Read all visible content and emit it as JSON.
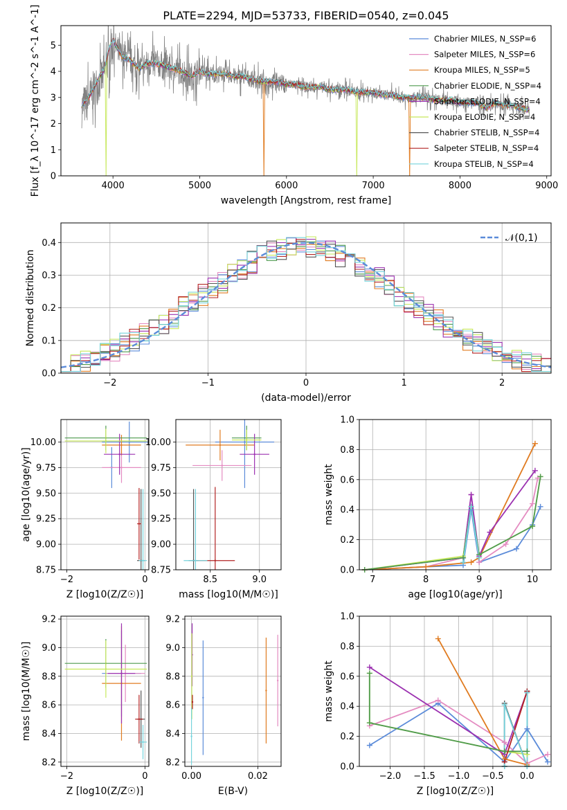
{
  "chart_data": [
    {
      "id": "spectrum",
      "type": "line",
      "title": "PLATE=2294, MJD=53733, FIBERID=0540, z=0.045",
      "xlabel": "wavelength [Angstrom, rest frame]",
      "ylabel": "Flux [f_λ 10^-17 erg cm^-2 s^-1 A^-1]",
      "xlim": [
        3400,
        9050
      ],
      "ylim": [
        0,
        5.75
      ],
      "xticks": [
        4000,
        5000,
        6000,
        7000,
        8000,
        9000
      ],
      "yticks": [
        0,
        1,
        2,
        3,
        4,
        5
      ],
      "grid": false,
      "legend_position": "top-right",
      "observed": {
        "color": "#808080",
        "x": [
          3640,
          3700,
          3800,
          3900,
          3950,
          4000,
          4100,
          4200,
          4300,
          4400,
          4500,
          4600,
          4700,
          4800,
          4900,
          5000,
          5100,
          5200,
          5300,
          5400,
          5500,
          5600,
          5700,
          5800,
          5900,
          6000,
          6100,
          6200,
          6300,
          6400,
          6500,
          6600,
          6700,
          6800,
          6900,
          7000,
          7100,
          7200,
          7300,
          7400,
          7500,
          7600,
          7700,
          7800,
          7900,
          8000,
          8100,
          8200,
          8300,
          8400,
          8500,
          8600,
          8700,
          8800
        ],
        "y": [
          2.6,
          2.8,
          3.4,
          3.9,
          4.6,
          5.1,
          4.6,
          4.4,
          4.1,
          4.3,
          4.3,
          4.2,
          4.1,
          4.0,
          3.8,
          4.0,
          3.9,
          3.9,
          3.9,
          3.8,
          3.8,
          3.7,
          3.6,
          3.6,
          3.6,
          3.5,
          3.5,
          3.4,
          3.4,
          3.4,
          3.3,
          3.3,
          3.3,
          3.2,
          3.2,
          3.2,
          3.1,
          3.1,
          3.0,
          3.0,
          3.0,
          3.0,
          2.9,
          2.9,
          2.9,
          2.8,
          2.8,
          2.8,
          2.6,
          2.8,
          2.7,
          2.7,
          2.6,
          2.5
        ]
      },
      "model_x": [
        3640,
        3700,
        3800,
        3900,
        3950,
        4000,
        4100,
        4200,
        4300,
        4400,
        4500,
        4600,
        4700,
        4800,
        4900,
        5000,
        5100,
        5200,
        5300,
        5400,
        5500,
        5600,
        5700,
        5800,
        5900,
        6000,
        6100,
        6200,
        6300,
        6400,
        6500,
        6600,
        6700,
        6800,
        6900,
        7000,
        7100,
        7200,
        7300,
        7400,
        7500,
        7600,
        7700,
        7800,
        7900,
        8000,
        8100,
        8200,
        8300,
        8400,
        8500,
        8600,
        8700,
        8800
      ],
      "model_y": [
        2.7,
        2.9,
        3.5,
        4.1,
        4.8,
        5.2,
        4.6,
        4.4,
        4.1,
        4.3,
        4.3,
        4.2,
        4.1,
        4.0,
        3.8,
        4.0,
        3.9,
        3.9,
        3.9,
        3.8,
        3.8,
        3.7,
        3.6,
        3.6,
        3.6,
        3.5,
        3.5,
        3.4,
        3.4,
        3.4,
        3.3,
        3.3,
        3.3,
        3.2,
        3.2,
        3.2,
        3.1,
        3.1,
        3.0,
        3.0,
        3.0,
        3.0,
        2.9,
        2.9,
        2.9,
        2.8,
        2.8,
        2.8,
        2.6,
        2.8,
        2.7,
        2.7,
        2.6,
        2.5
      ],
      "series": [
        {
          "name": "Chabrier MILES, N_SSP=6",
          "color": "#5b8bd9"
        },
        {
          "name": "Salpeter MILES, N_SSP=6",
          "color": "#e48bc1"
        },
        {
          "name": "Kroupa MILES, N_SSP=5",
          "color": "#e07b20",
          "drops": [
            5740,
            7420
          ]
        },
        {
          "name": "Chabrier ELODIE, N_SSP=4",
          "color": "#4e9a4e"
        },
        {
          "name": "Salpeter ELODIE, N_SSP=4",
          "color": "#9b30b0"
        },
        {
          "name": "Kroupa ELODIE, N_SSP=4",
          "color": "#c6e85a",
          "drops": [
            3920,
            6810
          ]
        },
        {
          "name": "Chabrier STELIB, N_SSP=4",
          "color": "#555555"
        },
        {
          "name": "Salpeter STELIB, N_SSP=4",
          "color": "#b22222"
        },
        {
          "name": "Kroupa STELIB, N_SSP=4",
          "color": "#74d3dc"
        }
      ]
    },
    {
      "id": "residuals",
      "type": "line",
      "xlabel": "(data-model)/error",
      "ylabel": "Normed distribution",
      "xlim": [
        -2.5,
        2.5
      ],
      "ylim": [
        0,
        0.46
      ],
      "xticks": [
        -2,
        -1,
        0,
        1,
        2
      ],
      "yticks": [
        0.0,
        0.1,
        0.2,
        0.3,
        0.4
      ],
      "grid": true,
      "legend_position": "top-right",
      "reference": {
        "name": "𝒩(0,1)",
        "color": "#5b8bd9"
      },
      "bin_edges": [
        -2.5,
        -2.4,
        -2.3,
        -2.2,
        -2.1,
        -2.0,
        -1.9,
        -1.8,
        -1.7,
        -1.6,
        -1.5,
        -1.4,
        -1.3,
        -1.2,
        -1.1,
        -1.0,
        -0.9,
        -0.8,
        -0.7,
        -0.6,
        -0.5,
        -0.4,
        -0.3,
        -0.2,
        -0.1,
        0.0,
        0.1,
        0.2,
        0.3,
        0.4,
        0.5,
        0.6,
        0.7,
        0.8,
        0.9,
        1.0,
        1.1,
        1.2,
        1.3,
        1.4,
        1.5,
        1.6,
        1.7,
        1.8,
        1.9,
        2.0,
        2.1,
        2.2,
        2.3,
        2.4,
        2.5
      ],
      "base_values": [
        0.02,
        0.03,
        0.04,
        0.05,
        0.06,
        0.07,
        0.09,
        0.1,
        0.12,
        0.13,
        0.15,
        0.17,
        0.2,
        0.22,
        0.24,
        0.26,
        0.28,
        0.3,
        0.32,
        0.34,
        0.36,
        0.37,
        0.38,
        0.39,
        0.39,
        0.39,
        0.38,
        0.37,
        0.36,
        0.34,
        0.33,
        0.31,
        0.29,
        0.27,
        0.24,
        0.22,
        0.2,
        0.18,
        0.16,
        0.14,
        0.12,
        0.1,
        0.09,
        0.07,
        0.06,
        0.05,
        0.04,
        0.03,
        0.03,
        0.02
      ],
      "series": [
        {
          "color": "#5b8bd9"
        },
        {
          "color": "#e48bc1"
        },
        {
          "color": "#e07b20"
        },
        {
          "color": "#4e9a4e"
        },
        {
          "color": "#9b30b0"
        },
        {
          "color": "#c6e85a"
        },
        {
          "color": "#555555"
        },
        {
          "color": "#b22222"
        },
        {
          "color": "#74d3dc"
        }
      ]
    },
    {
      "id": "age-vs-z",
      "type": "scatter",
      "xlabel": "Z [log10(Z/Z☉)]",
      "ylabel": "age  [log10(age/yr)]",
      "xlim": [
        -2.15,
        0.1
      ],
      "ylim": [
        8.75,
        10.22
      ],
      "xticks": [
        -2,
        0
      ],
      "yticks": [
        8.75,
        9.0,
        9.25,
        9.5,
        9.75,
        10.0
      ],
      "grid": true,
      "points": [
        {
          "color": "#5b8bd9",
          "x": -0.4,
          "y": 10.0,
          "xerr": 0.7,
          "yerr": 0.2
        },
        {
          "color": "#5b8bd9",
          "x": -0.85,
          "y": 9.75,
          "xerr": 0.05,
          "yerr": 0.2
        },
        {
          "color": "#e48bc1",
          "x": -0.6,
          "y": 9.75,
          "xerr": 0.5,
          "yerr": 0.15
        },
        {
          "color": "#e07b20",
          "x": -0.6,
          "y": 9.97,
          "xerr": 0.5,
          "yerr": 0.1
        },
        {
          "color": "#4e9a4e",
          "x": -1.0,
          "y": 10.04,
          "xerr": 1.05,
          "yerr": 0.12
        },
        {
          "color": "#9b30b0",
          "x": -0.65,
          "y": 9.88,
          "xerr": 0.4,
          "yerr": 0.2
        },
        {
          "color": "#c6e85a",
          "x": -1.0,
          "y": 10.01,
          "xerr": 1.05,
          "yerr": 0.12
        },
        {
          "color": "#555555",
          "x": -0.1,
          "y": 8.84,
          "xerr": 0.1,
          "yerr": 0.7
        },
        {
          "color": "#b22222",
          "x": -0.15,
          "y": 9.2,
          "xerr": 0.05,
          "yerr": 0.35
        },
        {
          "color": "#74d3dc",
          "x": -0.05,
          "y": 8.84,
          "xerr": 0.1,
          "yerr": 0.7
        }
      ]
    },
    {
      "id": "age-vs-mass",
      "type": "scatter",
      "xlabel": "mass [log10(M/M☉)]",
      "ylabel": "",
      "xlim": [
        8.15,
        9.22
      ],
      "ylim": [
        8.75,
        10.22
      ],
      "xticks": [
        8.5,
        9.0
      ],
      "yticks": [
        8.75,
        9.0,
        9.25,
        9.5,
        9.75,
        10.0
      ],
      "grid": true,
      "points": [
        {
          "color": "#5b8bd9",
          "x": 8.85,
          "y": 10.0,
          "xerr": 0.3,
          "yerr": 0.45
        },
        {
          "color": "#e48bc1",
          "x": 8.62,
          "y": 9.77,
          "xerr": 0.3,
          "yerr": 0.15
        },
        {
          "color": "#e07b20",
          "x": 8.6,
          "y": 9.97,
          "xerr": 0.35,
          "yerr": 0.15
        },
        {
          "color": "#4e9a4e",
          "x": 8.87,
          "y": 10.04,
          "xerr": 0.15,
          "yerr": 0.12
        },
        {
          "color": "#9b30b0",
          "x": 8.95,
          "y": 9.88,
          "xerr": 0.15,
          "yerr": 0.2
        },
        {
          "color": "#c6e85a",
          "x": 8.87,
          "y": 10.02,
          "xerr": 0.15,
          "yerr": 0.1
        },
        {
          "color": "#555555",
          "x": 8.33,
          "y": 8.84,
          "xerr": 0.05,
          "yerr": 0.7
        },
        {
          "color": "#b22222",
          "x": 8.55,
          "y": 8.84,
          "xerr": 0.2,
          "yerr": 0.72
        },
        {
          "color": "#74d3dc",
          "x": 8.35,
          "y": 8.84,
          "xerr": 0.12,
          "yerr": 0.7
        }
      ]
    },
    {
      "id": "weight-vs-age",
      "type": "line",
      "xlabel": "age  [log10(age/yr)]",
      "ylabel": "mass weight",
      "xlim": [
        6.75,
        10.35
      ],
      "ylim": [
        0,
        1.0
      ],
      "xticks": [
        7,
        8,
        9,
        10
      ],
      "yticks": [
        0.0,
        0.2,
        0.4,
        0.6,
        0.8,
        1.0
      ],
      "grid": true,
      "series": [
        {
          "color": "#5b8bd9",
          "x": [
            6.85,
            8.0,
            8.7,
            8.85,
            9.0,
            9.7,
            10.0,
            10.15
          ],
          "y": [
            0.0,
            0.02,
            0.03,
            0.4,
            0.05,
            0.14,
            0.3,
            0.42
          ]
        },
        {
          "color": "#e48bc1",
          "x": [
            6.85,
            8.0,
            8.7,
            8.85,
            9.0,
            9.5,
            10.0,
            10.1
          ],
          "y": [
            0.0,
            0.02,
            0.08,
            0.5,
            0.05,
            0.17,
            0.44,
            0.61
          ]
        },
        {
          "color": "#e07b20",
          "x": [
            6.85,
            8.0,
            8.85,
            9.0,
            10.05
          ],
          "y": [
            0.0,
            0.02,
            0.05,
            0.08,
            0.84
          ]
        },
        {
          "color": "#9b30b0",
          "x": [
            6.85,
            8.7,
            8.85,
            9.0,
            9.2,
            10.05
          ],
          "y": [
            0.0,
            0.08,
            0.5,
            0.09,
            0.25,
            0.66
          ]
        },
        {
          "color": "#c6e85a",
          "x": [
            6.85,
            8.7,
            8.85,
            9.0,
            10.0,
            10.15
          ],
          "y": [
            0.0,
            0.09,
            0.42,
            0.1,
            0.29,
            0.62
          ]
        },
        {
          "color": "#4e9a4e",
          "x": [
            6.85,
            8.7,
            8.85,
            9.0,
            10.0,
            10.15
          ],
          "y": [
            0.0,
            0.08,
            0.42,
            0.1,
            0.29,
            0.62
          ]
        },
        {
          "color": "#74d3dc",
          "x": [
            8.7,
            8.85,
            9.0
          ],
          "y": [
            0.05,
            0.42,
            0.08
          ]
        }
      ]
    },
    {
      "id": "mass-vs-z",
      "type": "scatter",
      "xlabel": "Z [log10(Z/Z☉)]",
      "ylabel": "mass [log10(M/M☉)]",
      "xlim": [
        -2.15,
        0.1
      ],
      "ylim": [
        8.17,
        9.22
      ],
      "xticks": [
        -2,
        0
      ],
      "yticks": [
        8.2,
        8.4,
        8.6,
        8.8,
        9.0,
        9.2
      ],
      "grid": true,
      "points": [
        {
          "color": "#5b8bd9",
          "x": -0.6,
          "y": 8.82,
          "xerr": 0.5,
          "yerr": 0.3
        },
        {
          "color": "#e48bc1",
          "x": -0.5,
          "y": 8.82,
          "xerr": 0.5,
          "yerr": 0.2
        },
        {
          "color": "#e07b20",
          "x": -0.6,
          "y": 8.75,
          "xerr": 0.5,
          "yerr": 0.4
        },
        {
          "color": "#4e9a4e",
          "x": -1.0,
          "y": 8.89,
          "xerr": 1.05,
          "yerr": 0.17
        },
        {
          "color": "#9b30b0",
          "x": -0.6,
          "y": 8.82,
          "xerr": 0.35,
          "yerr": 0.35
        },
        {
          "color": "#c6e85a",
          "x": -1.0,
          "y": 8.85,
          "xerr": 1.05,
          "yerr": 0.2
        },
        {
          "color": "#555555",
          "x": -0.1,
          "y": 8.5,
          "xerr": 0.1,
          "yerr": 0.2
        },
        {
          "color": "#b22222",
          "x": -0.15,
          "y": 8.5,
          "xerr": 0.1,
          "yerr": 0.17
        },
        {
          "color": "#74d3dc",
          "x": -0.05,
          "y": 8.34,
          "xerr": 0.1,
          "yerr": 0.12
        }
      ]
    },
    {
      "id": "mass-vs-ebv",
      "type": "scatter",
      "xlabel": "E(B-V)",
      "ylabel": "",
      "xlim": [
        -0.002,
        0.027
      ],
      "ylim": [
        8.17,
        9.22
      ],
      "xticks": [
        0.0,
        0.02
      ],
      "yticks": [
        8.2,
        8.4,
        8.6,
        8.8,
        9.0,
        9.2
      ],
      "grid": true,
      "points": [
        {
          "color": "#5b8bd9",
          "x": 0.0035,
          "y": 8.65,
          "xerr": 0,
          "yerr": 0.4
        },
        {
          "color": "#e48bc1",
          "x": 0.026,
          "y": 8.77,
          "xerr": 0,
          "yerr": 0.32
        },
        {
          "color": "#e07b20",
          "x": 0.0225,
          "y": 8.7,
          "xerr": 0,
          "yerr": 0.37
        },
        {
          "color": "#9b30b0",
          "x": 0.0002,
          "y": 8.95,
          "xerr": 0,
          "yerr": 0.22
        },
        {
          "color": "#c6e85a",
          "x": 0.0001,
          "y": 8.8,
          "xerr": 0,
          "yerr": 0.3
        },
        {
          "color": "#b22222",
          "x": 0.0003,
          "y": 8.62,
          "xerr": 0,
          "yerr": 0.05
        },
        {
          "color": "#74d3dc",
          "x": 0.0,
          "y": 8.38,
          "xerr": 0,
          "yerr": 0.2
        }
      ]
    },
    {
      "id": "weight-vs-z",
      "type": "line",
      "xlabel": "Z [log10(Z/Z☉)]",
      "ylabel": "mass weight",
      "xlim": [
        -2.45,
        0.35
      ],
      "ylim": [
        0,
        1.0
      ],
      "xticks": [
        -2.0,
        -1.5,
        -1.0,
        -0.5,
        0.0
      ],
      "yticks": [
        0.0,
        0.2,
        0.4,
        0.6,
        0.8,
        1.0
      ],
      "grid": true,
      "series": [
        {
          "color": "#5b8bd9",
          "x": [
            -2.3,
            -1.3,
            -0.33,
            0.0,
            0.3
          ],
          "y": [
            0.14,
            0.42,
            0.03,
            0.25,
            0.03
          ]
        },
        {
          "color": "#e48bc1",
          "x": [
            -2.3,
            -1.3,
            -0.33,
            0.0,
            0.3
          ],
          "y": [
            0.27,
            0.44,
            0.16,
            0.02,
            0.08
          ]
        },
        {
          "color": "#e07b20",
          "x": [
            -1.3,
            -0.33,
            0.0
          ],
          "y": [
            0.85,
            0.05,
            0.01
          ]
        },
        {
          "color": "#9b30b0",
          "x": [
            -2.3,
            -0.33,
            0.0
          ],
          "y": [
            0.66,
            0.08,
            0.5
          ]
        },
        {
          "color": "#c6e85a",
          "x": [
            -2.3,
            -2.3,
            -0.33,
            0.0
          ],
          "y": [
            0.62,
            0.29,
            0.1,
            0.08
          ]
        },
        {
          "color": "#4e9a4e",
          "x": [
            -2.3,
            -2.3,
            -0.33,
            0.0
          ],
          "y": [
            0.62,
            0.29,
            0.1,
            0.1
          ]
        },
        {
          "color": "#555555",
          "x": [
            -0.33,
            -0.33,
            0.0,
            0.0
          ],
          "y": [
            0.0,
            0.42,
            0.0,
            0.5
          ]
        },
        {
          "color": "#b22222",
          "x": [
            -0.33,
            0.0
          ],
          "y": [
            0.03,
            0.5
          ]
        },
        {
          "color": "#74d3dc",
          "x": [
            -0.33,
            -0.33,
            0.0,
            0.0
          ],
          "y": [
            0.0,
            0.41,
            0.0,
            0.49
          ]
        }
      ]
    }
  ]
}
